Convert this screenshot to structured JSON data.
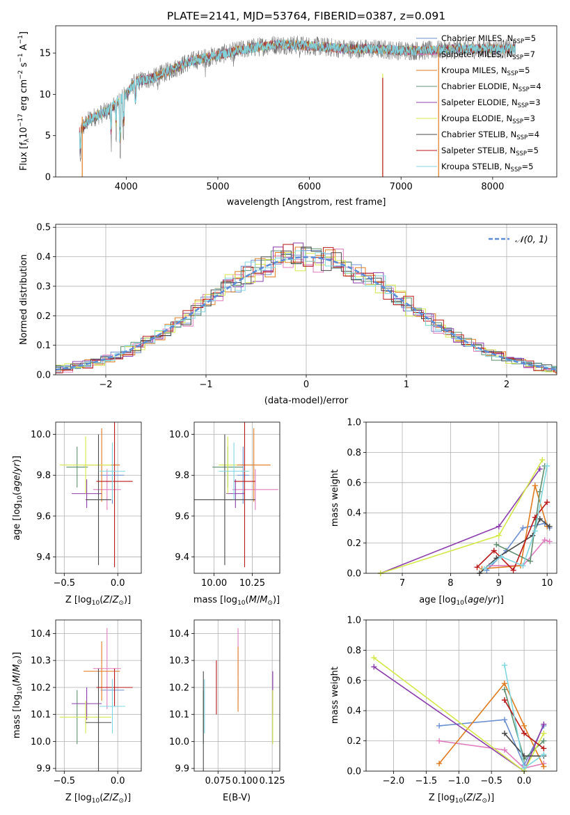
{
  "chart_data": [
    {
      "id": "spectrum",
      "type": "line",
      "title": "PLATE=2141, MJD=53764, FIBERID=0387, z=0.091",
      "xlabel": "wavelength [Angstrom, rest frame]",
      "ylabel": "Flux [f_λ 10^-17 erg cm^-2 s^-1 A^-1]",
      "xlim": [
        3230,
        8700
      ],
      "ylim": [
        0,
        18.3
      ],
      "xticks": [
        4000,
        5000,
        6000,
        7000,
        8000
      ],
      "yticks": [
        0,
        5,
        10,
        15
      ],
      "grid": false,
      "legend_position": "right",
      "series": [
        {
          "name": "Chabrier MILES, N_SSP=5",
          "color": "#6b8fd1"
        },
        {
          "name": "Salpeter MILES, N_SSP=7",
          "color": "#e07bbd"
        },
        {
          "name": "Kroupa MILES, N_SSP=5",
          "color": "#e07a1f"
        },
        {
          "name": "Chabrier ELODIE, N_SSP=4",
          "color": "#5e8f6e"
        },
        {
          "name": "Salpeter ELODIE, N_SSP=3",
          "color": "#8a3dab"
        },
        {
          "name": "Kroupa ELODIE, N_SSP=3",
          "color": "#d4e84a"
        },
        {
          "name": "Chabrier STELIB, N_SSP=4",
          "color": "#4a4a4a"
        },
        {
          "name": "Salpeter STELIB, N_SSP=5",
          "color": "#b81818"
        },
        {
          "name": "Kroupa STELIB, N_SSP=5",
          "color": "#7fd6e0"
        }
      ],
      "continuum": [
        [
          3490,
          5.5
        ],
        [
          3600,
          7
        ],
        [
          3800,
          8
        ],
        [
          3850,
          8.5
        ],
        [
          3950,
          9.5
        ],
        [
          4000,
          10
        ],
        [
          4100,
          11.5
        ],
        [
          4300,
          12
        ],
        [
          4500,
          13
        ],
        [
          4700,
          14
        ],
        [
          4900,
          14.5
        ],
        [
          5100,
          15
        ],
        [
          5300,
          15.5
        ],
        [
          5600,
          16
        ],
        [
          5800,
          16
        ],
        [
          6100,
          15.8
        ],
        [
          6400,
          15.5
        ],
        [
          6700,
          15.5
        ],
        [
          7000,
          15.3
        ],
        [
          7300,
          15.3
        ],
        [
          7600,
          15.5
        ],
        [
          7900,
          15.5
        ],
        [
          8250,
          15.5
        ]
      ],
      "absorption_dips": [
        [
          3500,
          0.5
        ],
        [
          3835,
          3
        ],
        [
          3890,
          4
        ],
        [
          3934,
          2
        ],
        [
          3970,
          4
        ],
        [
          4102,
          7
        ],
        [
          4340,
          10
        ],
        [
          4861,
          12
        ],
        [
          5175,
          13
        ],
        [
          5890,
          14
        ]
      ],
      "spikes": [
        {
          "x": 3520,
          "top": 7.3,
          "color": "#e07a1f"
        },
        {
          "x": 6800,
          "top": 12.5,
          "color": "#d4e84a"
        },
        {
          "x": 6800,
          "top": 12.0,
          "color": "#b81818"
        },
        {
          "x": 7410,
          "top": 15.8,
          "color": "#e07a1f"
        }
      ]
    },
    {
      "id": "residuals",
      "type": "histogram",
      "xlabel": "(data-model)/error",
      "ylabel": "Normed distribution",
      "xlim": [
        -2.5,
        2.5
      ],
      "ylim": [
        0,
        0.51
      ],
      "xticks": [
        -2,
        -1,
        0,
        1,
        2
      ],
      "yticks": [
        0,
        0.1,
        0.2,
        0.3,
        0.4,
        0.5
      ],
      "grid": true,
      "legend_position": "top-right",
      "bin_width": 0.1,
      "reference_curve": {
        "name": "N(0,1)",
        "color": "#5b8dd8",
        "mean": 0,
        "std": 1
      }
    },
    {
      "id": "age-vs-z",
      "type": "errorbar",
      "xlabel": "Z [log10(Z/Z⊙)]",
      "ylabel": "age [log10(age/yr)]",
      "xlim": [
        -0.58,
        0.22
      ],
      "ylim": [
        9.32,
        10.06
      ],
      "xticks": [
        -0.5,
        0.0
      ],
      "yticks": [
        9.4,
        9.6,
        9.8,
        10.0
      ],
      "grid": true,
      "points": [
        {
          "x": -0.05,
          "xerr": 0.11,
          "y": 9.8,
          "yerr": 0.14,
          "color": "#6b8fd1"
        },
        {
          "x": -0.1,
          "xerr": 0.13,
          "y": 9.73,
          "yerr": 0.1,
          "color": "#e07bbd"
        },
        {
          "x": -0.15,
          "xerr": 0.17,
          "y": 9.85,
          "yerr": 0.18,
          "color": "#e07a1f"
        },
        {
          "x": -0.38,
          "xerr": 0.1,
          "y": 9.84,
          "yerr": 0.1,
          "color": "#5e8f6e"
        },
        {
          "x": -0.29,
          "xerr": 0.14,
          "y": 9.71,
          "yerr": 0.07,
          "color": "#8a3dab"
        },
        {
          "x": -0.3,
          "xerr": 0.24,
          "y": 9.85,
          "yerr": 0.14,
          "color": "#d4e84a"
        },
        {
          "x": -0.18,
          "xerr": 0.12,
          "y": 9.68,
          "yerr": 0.32,
          "color": "#4a4a4a"
        },
        {
          "x": -0.03,
          "xerr": 0.17,
          "y": 9.77,
          "yerr": 0.42,
          "color": "#b81818"
        },
        {
          "x": -0.05,
          "xerr": 0.12,
          "y": 9.82,
          "yerr": 0.14,
          "color": "#7fd6e0"
        }
      ]
    },
    {
      "id": "age-vs-mass",
      "type": "errorbar",
      "xlabel": "mass [log10(M/M⊙)]",
      "ylabel": "",
      "xlim": [
        9.87,
        10.43
      ],
      "ylim": [
        9.32,
        10.06
      ],
      "xticks": [
        10.0,
        10.25
      ],
      "yticks": [
        9.4,
        9.6,
        9.8,
        10.0
      ],
      "grid": true,
      "points": [
        {
          "x": 10.19,
          "xerr": 0.04,
          "y": 9.8,
          "yerr": 0.14,
          "color": "#6b8fd1"
        },
        {
          "x": 10.27,
          "xerr": 0.15,
          "y": 9.73,
          "yerr": 0.1,
          "color": "#e07bbd"
        },
        {
          "x": 10.26,
          "xerr": 0.11,
          "y": 9.85,
          "yerr": 0.18,
          "color": "#e07a1f"
        },
        {
          "x": 10.09,
          "xerr": 0.1,
          "y": 9.84,
          "yerr": 0.1,
          "color": "#5e8f6e"
        },
        {
          "x": 10.14,
          "xerr": 0.06,
          "y": 9.71,
          "yerr": 0.07,
          "color": "#8a3dab"
        },
        {
          "x": 10.09,
          "xerr": 0.06,
          "y": 9.85,
          "yerr": 0.14,
          "color": "#d4e84a"
        },
        {
          "x": 10.07,
          "xerr": 0.2,
          "y": 9.68,
          "yerr": 0.32,
          "color": "#4a4a4a"
        },
        {
          "x": 10.2,
          "xerr": 0.07,
          "y": 9.77,
          "yerr": 0.42,
          "color": "#b81818"
        },
        {
          "x": 10.13,
          "xerr": 0.1,
          "y": 9.82,
          "yerr": 0.14,
          "color": "#7fd6e0"
        }
      ]
    },
    {
      "id": "weight-vs-age",
      "type": "line",
      "xlabel": "age [log10(age/yr)]",
      "ylabel": "mass weight",
      "xlim": [
        6.25,
        10.2
      ],
      "ylim": [
        0,
        1.0
      ],
      "xticks": [
        7,
        8,
        9,
        10
      ],
      "yticks": [
        0.0,
        0.2,
        0.4,
        0.6,
        0.8,
        1.0
      ],
      "grid": true,
      "series": [
        {
          "color": "#6b8fd1",
          "points": [
            [
              8.75,
              0.02
            ],
            [
              9.15,
              0.15
            ],
            [
              9.5,
              0.3
            ],
            [
              9.95,
              0.33
            ],
            [
              10.05,
              0.3
            ]
          ]
        },
        {
          "color": "#e07bbd",
          "points": [
            [
              8.8,
              0.05
            ],
            [
              9.5,
              0.05
            ],
            [
              9.95,
              0.22
            ],
            [
              10.05,
              0.21
            ]
          ]
        },
        {
          "color": "#e07a1f",
          "points": [
            [
              8.65,
              0.03
            ],
            [
              9.45,
              0.05
            ],
            [
              9.75,
              0.58
            ],
            [
              10.0,
              0.31
            ]
          ]
        },
        {
          "color": "#5e8f6e",
          "points": [
            [
              8.95,
              0.19
            ],
            [
              9.65,
              0.08
            ],
            [
              9.85,
              0.54
            ],
            [
              9.95,
              0.71
            ]
          ]
        },
        {
          "color": "#8a3dab",
          "points": [
            [
              6.55,
              0.0
            ],
            [
              9.0,
              0.31
            ],
            [
              9.85,
              0.69
            ]
          ]
        },
        {
          "color": "#d4e84a",
          "points": [
            [
              6.55,
              0.0
            ],
            [
              9.0,
              0.25
            ],
            [
              9.9,
              0.75
            ]
          ]
        },
        {
          "color": "#4a4a4a",
          "points": [
            [
              8.6,
              0.0
            ],
            [
              8.95,
              0.1
            ],
            [
              9.7,
              0.25
            ],
            [
              9.85,
              0.36
            ],
            [
              10.05,
              0.31
            ]
          ]
        },
        {
          "color": "#b81818",
          "points": [
            [
              8.55,
              0.04
            ],
            [
              8.9,
              0.15
            ],
            [
              9.3,
              0.02
            ],
            [
              9.75,
              0.37
            ],
            [
              10.0,
              0.47
            ]
          ]
        },
        {
          "color": "#7fd6e0",
          "points": [
            [
              8.7,
              0.03
            ],
            [
              9.05,
              0.11
            ],
            [
              9.5,
              0.05
            ],
            [
              9.75,
              0.28
            ],
            [
              10.0,
              0.71
            ]
          ]
        }
      ]
    },
    {
      "id": "mass-vs-z",
      "type": "errorbar",
      "xlabel": "Z [log10(Z/Z⊙)]",
      "ylabel": "mass [log10(M/M⊙)]",
      "xlim": [
        -0.58,
        0.22
      ],
      "ylim": [
        9.89,
        10.45
      ],
      "xticks": [
        -0.5,
        0.0
      ],
      "yticks": [
        9.9,
        10.0,
        10.1,
        10.2,
        10.3,
        10.4
      ],
      "grid": true,
      "points": [
        {
          "x": -0.05,
          "xerr": 0.11,
          "y": 10.19,
          "yerr": 0.04,
          "color": "#6b8fd1"
        },
        {
          "x": -0.1,
          "xerr": 0.13,
          "y": 10.27,
          "yerr": 0.15,
          "color": "#e07bbd"
        },
        {
          "x": -0.15,
          "xerr": 0.17,
          "y": 10.26,
          "yerr": 0.11,
          "color": "#e07a1f"
        },
        {
          "x": -0.38,
          "xerr": 0.1,
          "y": 10.09,
          "yerr": 0.1,
          "color": "#5e8f6e"
        },
        {
          "x": -0.29,
          "xerr": 0.14,
          "y": 10.14,
          "yerr": 0.06,
          "color": "#8a3dab"
        },
        {
          "x": -0.3,
          "xerr": 0.24,
          "y": 10.09,
          "yerr": 0.06,
          "color": "#d4e84a"
        },
        {
          "x": -0.18,
          "xerr": 0.12,
          "y": 10.07,
          "yerr": 0.2,
          "color": "#4a4a4a"
        },
        {
          "x": -0.03,
          "xerr": 0.17,
          "y": 10.2,
          "yerr": 0.07,
          "color": "#b81818"
        },
        {
          "x": -0.05,
          "xerr": 0.12,
          "y": 10.13,
          "yerr": 0.1,
          "color": "#7fd6e0"
        }
      ]
    },
    {
      "id": "mass-vs-ebv",
      "type": "errorbar",
      "xlabel": "E(B-V)",
      "ylabel": "",
      "xlim": [
        0.053,
        0.132
      ],
      "ylim": [
        9.89,
        10.45
      ],
      "xticks": [
        0.075,
        0.1,
        0.125
      ],
      "xticklabels": [
        "0.075",
        "0.100",
        "0.125"
      ],
      "yticks": [
        9.9,
        10.0,
        10.1,
        10.2,
        10.3,
        10.4
      ],
      "grid": true,
      "points": [
        {
          "x": 0.0935,
          "xerr": 0,
          "y": 10.19,
          "yerr": 0.04,
          "color": "#6b8fd1"
        },
        {
          "x": 0.0935,
          "xerr": 0,
          "y": 10.33,
          "yerr": 0.09,
          "color": "#e07bbd"
        },
        {
          "x": 0.0935,
          "xerr": 0,
          "y": 10.23,
          "yerr": 0.12,
          "color": "#e07a1f"
        },
        {
          "x": 0.0615,
          "xerr": 0,
          "y": 10.09,
          "yerr": 0.1,
          "color": "#5e8f6e"
        },
        {
          "x": 0.1255,
          "xerr": 0,
          "y": 10.18,
          "yerr": 0.08,
          "color": "#8a3dab"
        },
        {
          "x": 0.1255,
          "xerr": 0,
          "y": 10.09,
          "yerr": 0.1,
          "color": "#d4e84a"
        },
        {
          "x": 0.0615,
          "xerr": 0,
          "y": 10.07,
          "yerr": 0.19,
          "color": "#4a4a4a"
        },
        {
          "x": 0.0735,
          "xerr": 0,
          "y": 10.2,
          "yerr": 0.1,
          "color": "#b81818"
        },
        {
          "x": 0.0625,
          "xerr": 0,
          "y": 10.13,
          "yerr": 0.1,
          "color": "#7fd6e0"
        }
      ]
    },
    {
      "id": "weight-vs-z",
      "type": "line",
      "xlabel": "Z [log10(Z/Z⊙)]",
      "ylabel": "mass weight",
      "xlim": [
        -2.42,
        0.5
      ],
      "ylim": [
        0,
        1.0
      ],
      "xticks": [
        -2.0,
        -1.5,
        -1.0,
        -0.5,
        0.0
      ],
      "yticks": [
        0.0,
        0.2,
        0.4,
        0.6,
        0.8,
        1.0
      ],
      "grid": true,
      "series": [
        {
          "color": "#6b8fd1",
          "points": [
            [
              -1.3,
              0.3
            ],
            [
              -0.3,
              0.34
            ],
            [
              0.0,
              0.04
            ],
            [
              0.3,
              0.3
            ]
          ]
        },
        {
          "color": "#e07bbd",
          "points": [
            [
              -1.3,
              0.2
            ],
            [
              -0.3,
              0.14
            ],
            [
              0.0,
              0.02
            ],
            [
              0.3,
              0.05
            ]
          ]
        },
        {
          "color": "#e07a1f",
          "points": [
            [
              -1.3,
              0.05
            ],
            [
              -0.3,
              0.58
            ],
            [
              0.0,
              0.3
            ],
            [
              0.3,
              0.03
            ]
          ]
        },
        {
          "color": "#5e8f6e",
          "points": [
            [
              -0.3,
              0.54
            ],
            [
              0.0,
              0.08
            ],
            [
              0.3,
              0.2
            ]
          ]
        },
        {
          "color": "#8a3dab",
          "points": [
            [
              -2.3,
              0.69
            ],
            [
              0.0,
              0.0
            ],
            [
              0.3,
              0.31
            ]
          ]
        },
        {
          "color": "#d4e84a",
          "points": [
            [
              -2.3,
              0.75
            ],
            [
              0.0,
              0.0
            ],
            [
              0.3,
              0.25
            ]
          ]
        },
        {
          "color": "#4a4a4a",
          "points": [
            [
              -0.3,
              0.25
            ],
            [
              0.0,
              0.1
            ],
            [
              0.3,
              0.1
            ]
          ]
        },
        {
          "color": "#b81818",
          "points": [
            [
              -0.3,
              0.47
            ],
            [
              0.0,
              0.25
            ],
            [
              0.3,
              0.15
            ]
          ]
        },
        {
          "color": "#7fd6e0",
          "points": [
            [
              -0.3,
              0.7
            ],
            [
              0.0,
              0.02
            ],
            [
              0.3,
              0.11
            ]
          ]
        }
      ]
    }
  ]
}
